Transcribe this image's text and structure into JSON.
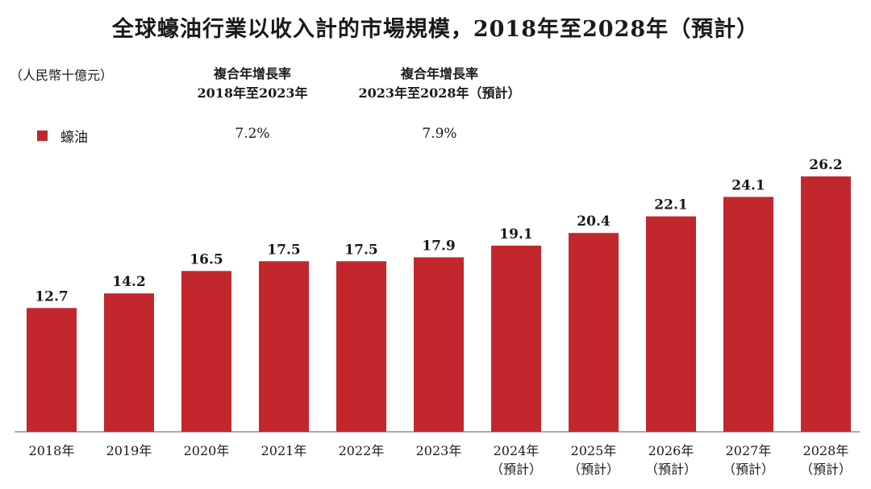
{
  "title": "全球蠔油行業以收入計的市場規模，2018年至2028年（預計）",
  "unit_label": "（人民幣十億元）",
  "cagr": [
    {
      "line1": "複合年增長率",
      "line2": "2018年至2023年",
      "value": "7.2%"
    },
    {
      "line1": "複合年增長率",
      "line2": "2023年至2028年（預計）",
      "value": "7.9%"
    }
  ],
  "legend": {
    "label": "蠔油",
    "color": "#c1272d"
  },
  "chart_data": {
    "type": "bar",
    "title": "全球蠔油行業以收入計的市場規模，2018年至2028年（預計）",
    "ylabel": "（人民幣十億元）",
    "categories": [
      "2018年",
      "2019年",
      "2020年",
      "2021年",
      "2022年",
      "2023年",
      "2024年",
      "2025年",
      "2026年",
      "2027年",
      "2028年"
    ],
    "category_notes": [
      "",
      "",
      "",
      "",
      "",
      "",
      "（預計）",
      "（預計）",
      "（預計）",
      "（預計）",
      "（預計）"
    ],
    "series": [
      {
        "name": "蠔油",
        "color": "#c1272d",
        "values": [
          12.7,
          14.2,
          16.5,
          17.5,
          17.5,
          17.9,
          19.1,
          20.4,
          22.1,
          24.1,
          26.2
        ],
        "labels": [
          "12.7",
          "14.2",
          "16.5",
          "17.5",
          "17.5",
          "17.9",
          "19.1",
          "20.4",
          "22.1",
          "24.1",
          "26.2"
        ]
      }
    ],
    "ylim": [
      0,
      26.2
    ],
    "grid": false,
    "legend_position": "top-left"
  }
}
